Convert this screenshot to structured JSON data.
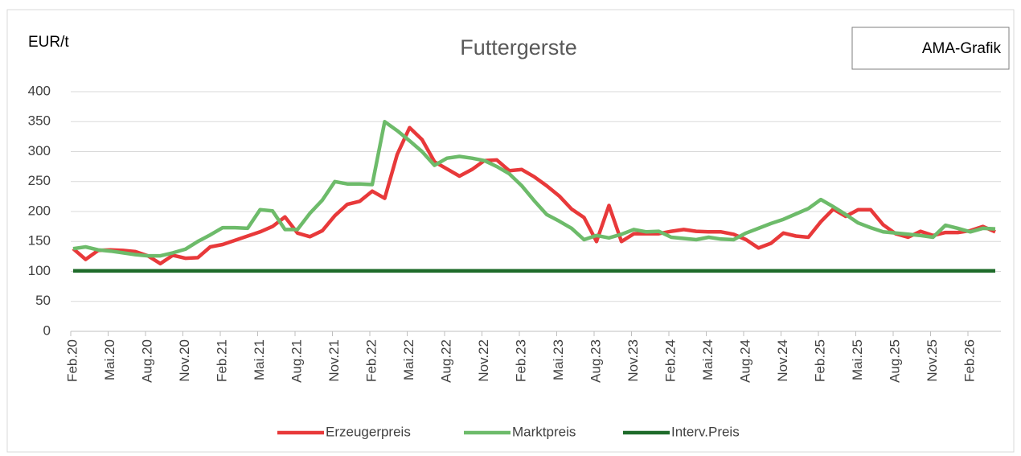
{
  "chart_data": {
    "type": "line",
    "title": "Futtergerste",
    "y_label": "EUR/t",
    "annotation": "AMA-Grafik",
    "categories": [
      "Feb.20",
      null,
      null,
      "Mai.20",
      null,
      null,
      "Aug.20",
      null,
      null,
      "Nov.20",
      null,
      null,
      "Feb.21",
      null,
      null,
      "Mai.21",
      null,
      null,
      "Aug.21",
      null,
      null,
      "Nov.21",
      null,
      null,
      "Feb.22",
      null,
      null,
      "Mai.22",
      null,
      null,
      "Aug.22",
      null,
      null,
      "Nov.22",
      null,
      null,
      "Feb.23",
      null,
      null,
      "Mai.23",
      null,
      null,
      "Aug.23",
      null,
      null,
      "Nov.23",
      null,
      null,
      "Feb.24",
      null,
      null,
      "Mai.24",
      null,
      null,
      "Aug.24",
      null,
      null,
      "Nov.24",
      null,
      null,
      "Feb.25",
      null,
      null,
      "Mai.25",
      null,
      null,
      "Aug.25",
      null,
      null,
      "Nov.25",
      null,
      null,
      "Feb.26",
      null,
      null
    ],
    "series": [
      {
        "name": "Erzeugerpreis",
        "color": "#e8393a",
        "values": [
          138,
          120,
          135,
          136,
          135,
          133,
          126,
          113,
          127,
          122,
          123,
          141,
          145,
          152,
          159,
          166,
          175,
          191,
          164,
          158,
          168,
          193,
          212,
          217,
          234,
          222,
          295,
          340,
          320,
          283,
          271,
          259,
          270,
          285,
          286,
          268,
          270,
          258,
          243,
          226,
          204,
          190,
          150,
          210,
          150,
          163,
          163,
          163,
          167,
          170,
          167,
          166,
          166,
          162,
          153,
          139,
          147,
          164,
          159,
          157,
          183,
          204,
          192,
          203,
          203,
          178,
          163,
          157,
          167,
          160,
          165,
          165,
          168,
          175,
          166
        ]
      },
      {
        "name": "Marktpreis",
        "color": "#6dbb6a",
        "values": [
          138,
          141,
          136,
          134,
          131,
          128,
          126,
          126,
          131,
          137,
          150,
          161,
          173,
          173,
          172,
          203,
          201,
          170,
          170,
          197,
          219,
          250,
          246,
          246,
          245,
          350,
          335,
          318,
          300,
          277,
          289,
          292,
          289,
          285,
          275,
          263,
          243,
          218,
          195,
          184,
          172,
          153,
          160,
          156,
          162,
          170,
          166,
          167,
          157,
          155,
          153,
          157,
          154,
          153,
          164,
          172,
          180,
          187,
          196,
          205,
          220,
          208,
          195,
          181,
          173,
          166,
          164,
          162,
          160,
          157,
          177,
          172,
          166,
          172,
          171
        ]
      },
      {
        "name": "Interv.Preis",
        "color": "#1e6b2a",
        "values": [
          101,
          101,
          101,
          101,
          101,
          101,
          101,
          101,
          101,
          101,
          101,
          101,
          101,
          101,
          101,
          101,
          101,
          101,
          101,
          101,
          101,
          101,
          101,
          101,
          101,
          101,
          101,
          101,
          101,
          101,
          101,
          101,
          101,
          101,
          101,
          101,
          101,
          101,
          101,
          101,
          101,
          101,
          101,
          101,
          101,
          101,
          101,
          101,
          101,
          101,
          101,
          101,
          101,
          101,
          101,
          101,
          101,
          101,
          101,
          101,
          101,
          101,
          101,
          101,
          101,
          101,
          101,
          101,
          101,
          101,
          101,
          101,
          101,
          101,
          101
        ]
      }
    ],
    "ylim": [
      0,
      400
    ],
    "yticks": [
      0,
      50,
      100,
      150,
      200,
      250,
      300,
      350,
      400
    ],
    "grid": true,
    "legend": "bottom"
  }
}
